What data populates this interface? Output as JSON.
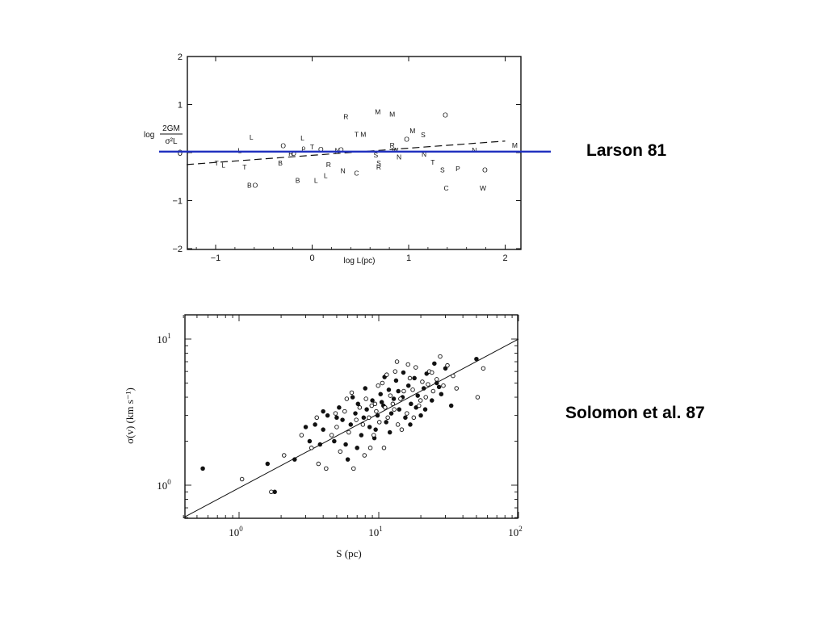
{
  "captions": {
    "top": "Larson 81",
    "bottom": "Solomon et al. 87"
  },
  "colors": {
    "ink": "#111111",
    "highlight_line": "#1f2fbf",
    "background": "#ffffff"
  },
  "chart_data": [
    {
      "type": "scatter",
      "title": "",
      "xlabel": "log L(pc)",
      "ylabel_prefix": "log",
      "ylabel_fraction": {
        "numerator": "2GM",
        "denominator": "σ²L"
      },
      "xlim": [
        -1.3,
        2.2
      ],
      "ylim": [
        -2,
        2
      ],
      "xticks": [
        -1,
        0,
        1,
        2
      ],
      "xtick_labels": [
        "−1",
        "0",
        "1",
        "2"
      ],
      "yticks": [
        2,
        1,
        0,
        -1,
        -2
      ],
      "ytick_labels": [
        "2",
        "1",
        "0",
        "−1",
        "−2"
      ],
      "grid": false,
      "points": [
        {
          "x": -0.63,
          "y": 0.32,
          "label": "L"
        },
        {
          "x": -0.75,
          "y": 0.04,
          "label": "L"
        },
        {
          "x": -0.99,
          "y": -0.22,
          "label": "T"
        },
        {
          "x": -0.92,
          "y": -0.26,
          "label": "L"
        },
        {
          "x": -0.7,
          "y": -0.3,
          "label": "T"
        },
        {
          "x": -0.65,
          "y": -0.68,
          "label": "B"
        },
        {
          "x": -0.59,
          "y": -0.68,
          "label": "O"
        },
        {
          "x": -0.3,
          "y": 0.14,
          "label": "O"
        },
        {
          "x": -0.33,
          "y": -0.22,
          "label": "B"
        },
        {
          "x": -0.22,
          "y": -0.02,
          "label": "R"
        },
        {
          "x": -0.19,
          "y": -0.02,
          "label": "D"
        },
        {
          "x": -0.1,
          "y": 0.3,
          "label": "L"
        },
        {
          "x": -0.09,
          "y": 0.1,
          "label": "ρ"
        },
        {
          "x": 0.0,
          "y": 0.12,
          "label": "T"
        },
        {
          "x": 0.09,
          "y": 0.07,
          "label": "O"
        },
        {
          "x": -0.15,
          "y": -0.58,
          "label": "B"
        },
        {
          "x": 0.04,
          "y": -0.58,
          "label": "L"
        },
        {
          "x": 0.14,
          "y": -0.48,
          "label": "L"
        },
        {
          "x": 0.17,
          "y": -0.25,
          "label": "R"
        },
        {
          "x": 0.26,
          "y": 0.04,
          "label": "N"
        },
        {
          "x": 0.3,
          "y": 0.06,
          "label": "O"
        },
        {
          "x": 0.32,
          "y": -0.38,
          "label": "N"
        },
        {
          "x": 0.46,
          "y": -0.43,
          "label": "C"
        },
        {
          "x": 0.35,
          "y": 0.75,
          "label": "R"
        },
        {
          "x": 0.46,
          "y": 0.38,
          "label": "T"
        },
        {
          "x": 0.53,
          "y": 0.38,
          "label": "M"
        },
        {
          "x": 0.68,
          "y": 0.85,
          "label": "M"
        },
        {
          "x": 0.83,
          "y": 0.8,
          "label": "M"
        },
        {
          "x": 0.66,
          "y": -0.05,
          "label": "S"
        },
        {
          "x": 0.69,
          "y": -0.22,
          "label": "S"
        },
        {
          "x": 0.69,
          "y": -0.3,
          "label": "R"
        },
        {
          "x": 0.83,
          "y": 0.15,
          "label": "R"
        },
        {
          "x": 0.86,
          "y": 0.05,
          "label": "W"
        },
        {
          "x": 0.9,
          "y": -0.09,
          "label": "N"
        },
        {
          "x": 0.98,
          "y": 0.28,
          "label": "O"
        },
        {
          "x": 1.04,
          "y": 0.45,
          "label": "M"
        },
        {
          "x": 1.15,
          "y": 0.37,
          "label": "S"
        },
        {
          "x": 1.16,
          "y": -0.03,
          "label": "N"
        },
        {
          "x": 1.25,
          "y": -0.2,
          "label": "T"
        },
        {
          "x": 1.38,
          "y": 0.78,
          "label": "O"
        },
        {
          "x": 1.39,
          "y": -0.74,
          "label": "C"
        },
        {
          "x": 1.51,
          "y": -0.34,
          "label": "P"
        },
        {
          "x": 1.35,
          "y": -0.36,
          "label": "S"
        },
        {
          "x": 1.68,
          "y": 0.05,
          "label": "N"
        },
        {
          "x": 1.77,
          "y": -0.74,
          "label": "W"
        },
        {
          "x": 1.79,
          "y": -0.36,
          "label": "O"
        },
        {
          "x": 2.1,
          "y": 0.15,
          "label": "M"
        }
      ],
      "dashed_fit": {
        "from": [
          -1.3,
          -0.25
        ],
        "to": [
          2.0,
          0.24
        ]
      },
      "highlight_line_y": 0.02
    },
    {
      "type": "scatter",
      "title": "",
      "xlabel": "S   (pc)",
      "ylabel": "σ(v)   (km s⁻¹)",
      "xscale": "log",
      "yscale": "log",
      "xlim": [
        0.4,
        100
      ],
      "ylim": [
        0.6,
        13
      ],
      "xticks": [
        1,
        10,
        100
      ],
      "xtick_labels": [
        {
          "base": "10",
          "exp": "0"
        },
        {
          "base": "10",
          "exp": "1"
        },
        {
          "base": "10",
          "exp": "2"
        }
      ],
      "yticks": [
        1,
        10
      ],
      "ytick_labels": [
        {
          "base": "10",
          "exp": "0"
        },
        {
          "base": "10",
          "exp": "1"
        }
      ],
      "grid": false,
      "fit_line": {
        "from": [
          0.4,
          0.6
        ],
        "to": [
          100,
          10
        ]
      },
      "series": [
        {
          "marker": "filled",
          "points": [
            [
              0.55,
              1.3
            ],
            [
              1.6,
              1.4
            ],
            [
              1.8,
              0.9
            ],
            [
              2.5,
              1.5
            ],
            [
              3.0,
              2.5
            ],
            [
              3.2,
              2.0
            ],
            [
              3.5,
              2.6
            ],
            [
              4.0,
              2.4
            ],
            [
              4.3,
              3.0
            ],
            [
              4.8,
              2.0
            ],
            [
              5.2,
              3.4
            ],
            [
              5.5,
              2.8
            ],
            [
              5.8,
              1.9
            ],
            [
              6.0,
              1.5
            ],
            [
              6.3,
              2.6
            ],
            [
              6.8,
              3.1
            ],
            [
              7.1,
              3.6
            ],
            [
              7.5,
              2.2
            ],
            [
              7.8,
              2.9
            ],
            [
              8.2,
              3.3
            ],
            [
              8.6,
              2.5
            ],
            [
              9.0,
              3.8
            ],
            [
              9.3,
              2.1
            ],
            [
              9.8,
              3.0
            ],
            [
              10.3,
              4.2
            ],
            [
              10.8,
              3.5
            ],
            [
              11.3,
              2.7
            ],
            [
              11.8,
              4.5
            ],
            [
              12.3,
              3.1
            ],
            [
              12.8,
              3.9
            ],
            [
              13.3,
              5.2
            ],
            [
              14.0,
              3.3
            ],
            [
              14.8,
              4.0
            ],
            [
              15.5,
              2.9
            ],
            [
              16.3,
              4.8
            ],
            [
              17.0,
              3.6
            ],
            [
              18.0,
              5.4
            ],
            [
              19.0,
              4.1
            ],
            [
              20.0,
              3.0
            ],
            [
              21.0,
              4.6
            ],
            [
              22.0,
              5.8
            ],
            [
              24.0,
              3.8
            ],
            [
              26.0,
              5.0
            ],
            [
              28.0,
              4.2
            ],
            [
              30.0,
              6.3
            ],
            [
              33.0,
              3.5
            ],
            [
              50.0,
              7.3
            ],
            [
              4.0,
              3.2
            ],
            [
              6.5,
              4.0
            ],
            [
              8.0,
              4.6
            ],
            [
              9.5,
              2.4
            ],
            [
              12.0,
              2.3
            ],
            [
              15.0,
              5.9
            ],
            [
              18.5,
              3.4
            ],
            [
              25.0,
              6.8
            ],
            [
              7.0,
              1.8
            ],
            [
              10.5,
              3.7
            ],
            [
              13.8,
              4.4
            ],
            [
              5.0,
              2.9
            ],
            [
              3.8,
              1.9
            ],
            [
              16.8,
              2.6
            ],
            [
              27.0,
              4.7
            ],
            [
              11.0,
              5.5
            ],
            [
              21.5,
              3.3
            ]
          ]
        },
        {
          "marker": "open",
          "points": [
            [
              1.05,
              1.1
            ],
            [
              1.7,
              0.9
            ],
            [
              2.1,
              1.6
            ],
            [
              2.8,
              2.2
            ],
            [
              3.3,
              1.8
            ],
            [
              3.7,
              1.4
            ],
            [
              4.2,
              1.3
            ],
            [
              4.6,
              2.2
            ],
            [
              5.0,
              2.5
            ],
            [
              5.3,
              1.7
            ],
            [
              5.7,
              3.2
            ],
            [
              6.1,
              2.3
            ],
            [
              6.6,
              1.3
            ],
            [
              6.9,
              2.8
            ],
            [
              7.3,
              3.4
            ],
            [
              7.7,
              2.6
            ],
            [
              8.1,
              3.9
            ],
            [
              8.5,
              2.9
            ],
            [
              8.9,
              3.5
            ],
            [
              9.2,
              2.2
            ],
            [
              9.6,
              3.2
            ],
            [
              10.1,
              2.7
            ],
            [
              10.6,
              5.0
            ],
            [
              11.1,
              3.4
            ],
            [
              11.6,
              2.9
            ],
            [
              12.1,
              4.1
            ],
            [
              12.6,
              3.6
            ],
            [
              13.1,
              6.0
            ],
            [
              13.7,
              2.6
            ],
            [
              14.3,
              3.9
            ],
            [
              15.1,
              4.4
            ],
            [
              15.9,
              3.1
            ],
            [
              16.7,
              5.4
            ],
            [
              17.5,
              4.5
            ],
            [
              18.4,
              6.4
            ],
            [
              19.4,
              3.5
            ],
            [
              20.5,
              5.1
            ],
            [
              21.7,
              4.0
            ],
            [
              23.0,
              6.0
            ],
            [
              24.5,
              4.4
            ],
            [
              26.0,
              5.3
            ],
            [
              27.5,
              7.6
            ],
            [
              29.0,
              4.8
            ],
            [
              31.0,
              6.6
            ],
            [
              34.0,
              5.6
            ],
            [
              36.0,
              4.6
            ],
            [
              51.0,
              4.0
            ],
            [
              56.0,
              6.3
            ],
            [
              13.5,
              7.0
            ],
            [
              6.4,
              4.3
            ],
            [
              9.9,
              4.8
            ],
            [
              11.4,
              5.7
            ],
            [
              16.2,
              6.7
            ],
            [
              8.7,
              1.8
            ],
            [
              10.9,
              1.8
            ],
            [
              14.6,
              2.4
            ],
            [
              7.9,
              1.6
            ],
            [
              17.8,
              2.9
            ],
            [
              12.9,
              3.3
            ],
            [
              9.4,
              3.6
            ],
            [
              19.9,
              3.8
            ],
            [
              22.5,
              4.9
            ],
            [
              24.0,
              5.9
            ],
            [
              5.9,
              3.9
            ],
            [
              4.9,
              3.1
            ],
            [
              3.6,
              2.9
            ]
          ]
        }
      ]
    }
  ]
}
